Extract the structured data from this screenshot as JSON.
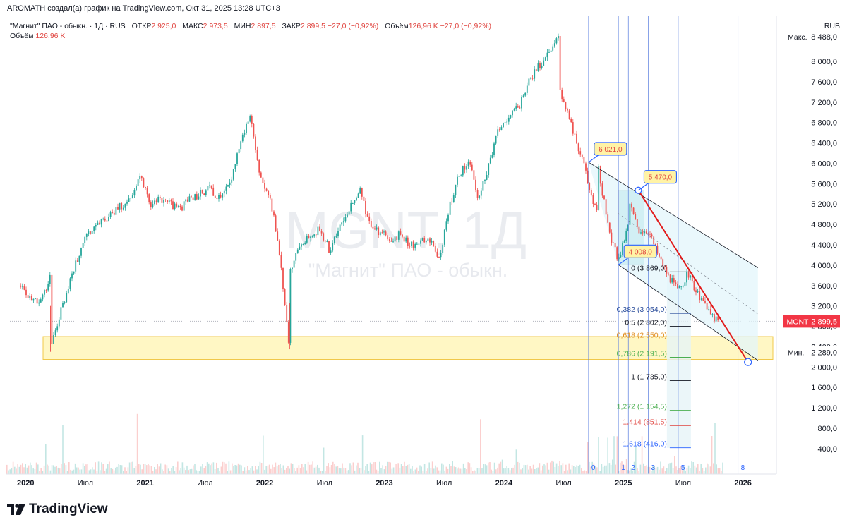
{
  "header": {
    "attribution": "AROMATH создал(а) график на TradingView.com, Окт 31, 2025 13:28 UTC+3"
  },
  "legend": {
    "symbol_line": "\"Магнит\" ПАО - обыкн. · 1Д · RUS",
    "open_label": "ОТКР",
    "open_value": "2 925,0",
    "high_label": "МАКС",
    "high_value": "2 973,5",
    "low_label": "МИН",
    "low_value": "2 897,5",
    "close_label": "ЗАКР",
    "close_value": "2 899,5",
    "change": "−27,0 (−0,92%)",
    "volume_label": "Объём",
    "volume_value": "126,96 K",
    "volume_change": "−27,0 (−0,92%)",
    "volume_row_label": "Объём",
    "volume_row_value": "126,96 K"
  },
  "currency": "RUB",
  "footer": {
    "brand": "TradingView"
  },
  "colors": {
    "up": "#26a69a",
    "down": "#ef5350",
    "accent": "#2962ff",
    "price_tag": "#f23645",
    "support_zone": "#fff7c4",
    "fib_teal": "#e6f4f8"
  },
  "chart_data": {
    "type": "candlestick",
    "title": "",
    "watermark_symbol": "MGNT, 1Д",
    "watermark_name": "\"Магнит\" ПАО - обыкн.",
    "xlabel": "",
    "ylabel": "",
    "x_ticks": [
      "2020",
      "Июл",
      "2021",
      "Июл",
      "2022",
      "Июл",
      "2023",
      "Июл",
      "2024",
      "Июл",
      "2025",
      "Июл",
      "2026"
    ],
    "y_ticks": [
      "400,0",
      "800,0",
      "1 200,0",
      "1 600,0",
      "2 000,0",
      "2 400,0",
      "2 800,0",
      "3 200,0",
      "3 600,0",
      "4 000,0",
      "4 400,0",
      "4 800,0",
      "5 200,0",
      "5 600,0",
      "6 000,0",
      "6 400,0",
      "6 800,0",
      "7 200,0",
      "7 600,0",
      "8 000,0"
    ],
    "ylim": [
      -100,
      8900
    ],
    "x_start": "2019-11",
    "x_end": "2026-04",
    "price_path": [
      {
        "x": "2019-12",
        "y": 3600
      },
      {
        "x": "2020-01",
        "y": 3300
      },
      {
        "x": "2020-02",
        "y": 3250
      },
      {
        "x": "2020-03",
        "y": 3800
      },
      {
        "x": "2020-03",
        "y": 2300
      },
      {
        "x": "2020-04",
        "y": 3100
      },
      {
        "x": "2020-05",
        "y": 3700
      },
      {
        "x": "2020-06",
        "y": 4300
      },
      {
        "x": "2020-07",
        "y": 4700
      },
      {
        "x": "2020-09",
        "y": 5000
      },
      {
        "x": "2020-11",
        "y": 5300
      },
      {
        "x": "2020-12",
        "y": 5700
      },
      {
        "x": "2021-01",
        "y": 5200
      },
      {
        "x": "2021-02",
        "y": 5300
      },
      {
        "x": "2021-04",
        "y": 5100
      },
      {
        "x": "2021-05",
        "y": 5300
      },
      {
        "x": "2021-06",
        "y": 5400
      },
      {
        "x": "2021-07",
        "y": 5500
      },
      {
        "x": "2021-08",
        "y": 5300
      },
      {
        "x": "2021-09",
        "y": 5600
      },
      {
        "x": "2021-10",
        "y": 6400
      },
      {
        "x": "2021-11",
        "y": 6950
      },
      {
        "x": "2021-12",
        "y": 5700
      },
      {
        "x": "2022-01",
        "y": 5400
      },
      {
        "x": "2022-02",
        "y": 4200
      },
      {
        "x": "2022-03",
        "y": 2350
      },
      {
        "x": "2022-03",
        "y": 3900
      },
      {
        "x": "2022-04",
        "y": 4400
      },
      {
        "x": "2022-06",
        "y": 4700
      },
      {
        "x": "2022-07",
        "y": 4300
      },
      {
        "x": "2022-09",
        "y": 5100
      },
      {
        "x": "2022-10",
        "y": 5500
      },
      {
        "x": "2022-11",
        "y": 4800
      },
      {
        "x": "2023-01",
        "y": 4500
      },
      {
        "x": "2023-02",
        "y": 4600
      },
      {
        "x": "2023-03",
        "y": 4400
      },
      {
        "x": "2023-05",
        "y": 4500
      },
      {
        "x": "2023-06",
        "y": 4100
      },
      {
        "x": "2023-07",
        "y": 5100
      },
      {
        "x": "2023-08",
        "y": 5800
      },
      {
        "x": "2023-09",
        "y": 6000
      },
      {
        "x": "2023-10",
        "y": 5300
      },
      {
        "x": "2023-11",
        "y": 6000
      },
      {
        "x": "2023-12",
        "y": 6700
      },
      {
        "x": "2024-02",
        "y": 7100
      },
      {
        "x": "2024-03",
        "y": 7600
      },
      {
        "x": "2024-05",
        "y": 8200
      },
      {
        "x": "2024-06",
        "y": 8488
      },
      {
        "x": "2024-06",
        "y": 7500
      },
      {
        "x": "2024-07",
        "y": 6900
      },
      {
        "x": "2024-08",
        "y": 6300
      },
      {
        "x": "2024-09",
        "y": 5600
      },
      {
        "x": "2024-10",
        "y": 4900
      },
      {
        "x": "2024-10",
        "y": 5900
      },
      {
        "x": "2024-11",
        "y": 4700
      },
      {
        "x": "2024-12",
        "y": 4100
      },
      {
        "x": "2025-01",
        "y": 4800
      },
      {
        "x": "2025-01",
        "y": 5300
      },
      {
        "x": "2025-02",
        "y": 4700
      },
      {
        "x": "2025-03",
        "y": 4700
      },
      {
        "x": "2025-04",
        "y": 4200
      },
      {
        "x": "2025-05",
        "y": 3800
      },
      {
        "x": "2025-06",
        "y": 3500
      },
      {
        "x": "2025-07",
        "y": 3850
      },
      {
        "x": "2025-08",
        "y": 3400
      },
      {
        "x": "2025-09",
        "y": 3100
      },
      {
        "x": "2025-10",
        "y": 2900
      }
    ],
    "last_price": {
      "symbol": "MGNT",
      "value": "2 899,5"
    },
    "max_marker": {
      "label": "Макс.",
      "value": "8 488,0"
    },
    "min_marker": {
      "label": "Мин.",
      "value": "2 289,0"
    },
    "callouts": [
      {
        "text": "6 021,0",
        "x": "2024-09",
        "y": 6021
      },
      {
        "text": "5 470,0",
        "x": "2025-02",
        "y": 5470
      },
      {
        "text": "4 008,0",
        "x": "2024-12",
        "y": 4008
      }
    ],
    "fib_levels": [
      {
        "ratio": "0",
        "text": "0 (3 869,0)",
        "value": 3869,
        "color": "#131722"
      },
      {
        "ratio": "0,382",
        "text": "0,382 (3 054,0)",
        "value": 3054,
        "color": "#2a4d9b"
      },
      {
        "ratio": "0,5",
        "text": "0,5 (2 802,0)",
        "value": 2802,
        "color": "#131722"
      },
      {
        "ratio": "0,618",
        "text": "0,618 (2 550,0)",
        "value": 2550,
        "color": "#e08a1a"
      },
      {
        "ratio": "0,786",
        "text": "0,786 (2 191,5)",
        "value": 2191.5,
        "color": "#4caf50"
      },
      {
        "ratio": "1",
        "text": "1 (1 735,0)",
        "value": 1735,
        "color": "#131722"
      },
      {
        "ratio": "1,272",
        "text": "1,272 (1 154,5)",
        "value": 1154.5,
        "color": "#4caf50"
      },
      {
        "ratio": "1,414",
        "text": "1,414 (851,5)",
        "value": 851.5,
        "color": "#e0443f"
      },
      {
        "ratio": "1,618",
        "text": "1,618 (416,0)",
        "value": 416,
        "color": "#2962ff"
      }
    ],
    "support_zone": {
      "from": 2150,
      "to": 2600
    },
    "fib_time_zones": [
      {
        "label": "0",
        "x": "2024-09"
      },
      {
        "label": "1",
        "x": "2024-12"
      },
      {
        "label": "2",
        "x": "2025-01"
      },
      {
        "label": "3",
        "x": "2025-03"
      },
      {
        "label": "5",
        "x": "2025-06"
      },
      {
        "label": "8",
        "x": "2025-12"
      }
    ],
    "trend_line": {
      "from": {
        "x": "2025-02",
        "y": 5470
      },
      "to": {
        "x": "2026-01",
        "y": 2100
      }
    },
    "channel": {
      "upper": {
        "from": {
          "x": "2024-09",
          "y": 6021
        },
        "to": {
          "x": "2026-02",
          "y": 3950
        }
      },
      "lower": {
        "from": {
          "x": "2024-12",
          "y": 4008
        },
        "to": {
          "x": "2026-02",
          "y": 2130
        }
      }
    },
    "grid": false,
    "legend_position": "top-left"
  }
}
